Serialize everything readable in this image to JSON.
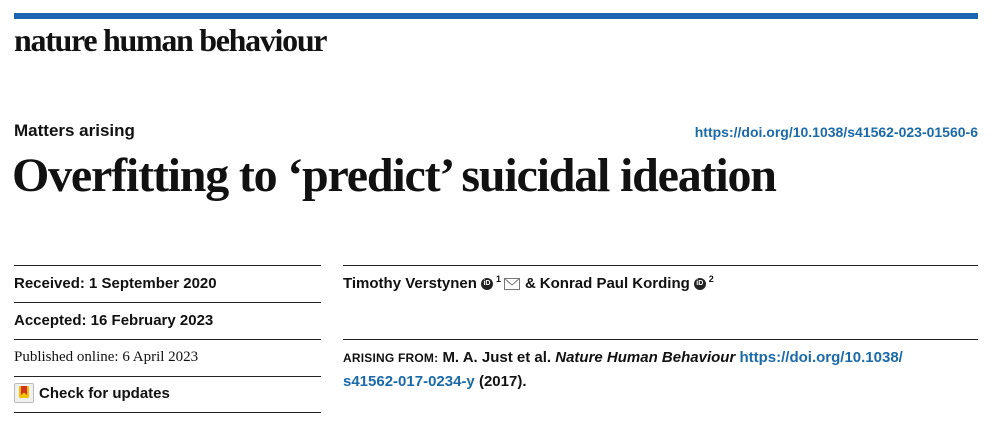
{
  "header": {
    "journal": "nature human behaviour",
    "accent_color": "#1b66b0"
  },
  "article": {
    "type": "Matters arising",
    "doi_url": "https://doi.org/10.1038/s41562-023-01560-6",
    "title": "Overfitting to ‘predict’ suicidal ideation"
  },
  "dates": {
    "received": "Received: 1 September 2020",
    "accepted": "Accepted: 16 February 2023",
    "published": "Published online: 6 April 2023",
    "check_updates": "Check for updates"
  },
  "authors": [
    {
      "name": "Timothy Verstynen",
      "orcid": "iD",
      "affiliation": "1",
      "icon": "mail-icon"
    },
    {
      "name": "Konrad Paul Kording",
      "orcid": "iD",
      "affiliation": "2"
    }
  ],
  "authors_joiner": "&",
  "arising": {
    "label": "ARISING FROM:",
    "authors": "M. A. Just et al.",
    "journal": "Nature Human Behaviour",
    "link_line1": "https://doi.org/10.1038/",
    "link_line2": "s41562-017-0234-y",
    "year": "(2017)."
  }
}
